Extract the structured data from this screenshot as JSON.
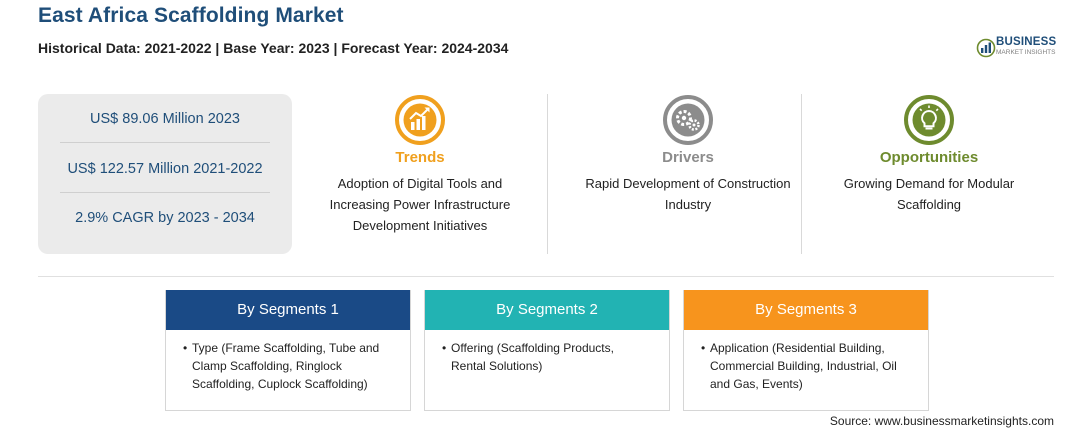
{
  "header": {
    "title": "East Africa Scaffolding Market",
    "subtitle": "Historical Data: 2021-2022 | Base Year: 2023 | Forecast Year: 2024-2034"
  },
  "logo": {
    "name": "BUSINESS",
    "tagline": "MARKET INSIGHTS",
    "icon": "bar-chart-globe-icon"
  },
  "stats": [
    "US$ 89.06 Million 2023",
    "US$ 122.57 Million 2021-2022",
    "2.9% CAGR by 2023 - 2034"
  ],
  "features": {
    "trends": {
      "title": "Trends",
      "text": "Adoption of Digital Tools and Increasing Power Infrastructure Development Initiatives",
      "icon": "rising-chart-icon",
      "color": "#f0a01e"
    },
    "drivers": {
      "title": "Drivers",
      "text": "Rapid Development of Construction Industry",
      "icon": "gears-icon",
      "color": "#8c8c8c"
    },
    "opportunities": {
      "title": "Opportunities",
      "text": "Growing Demand for Modular Scaffolding",
      "icon": "lightbulb-icon",
      "color": "#6e8b2e"
    }
  },
  "segments": [
    {
      "title": "By Segments 1",
      "text": "Type (Frame Scaffolding, Tube and Clamp Scaffolding, Ringlock Scaffolding, Cuplock Scaffolding)",
      "color": "#1a4a86"
    },
    {
      "title": "By Segments 2",
      "text": "Offering (Scaffolding Products, Rental Solutions)",
      "color": "#22b3b3"
    },
    {
      "title": "By Segments 3",
      "text": "Application (Residential Building, Commercial Building, Industrial, Oil and Gas, Events)",
      "color": "#f7941d"
    }
  ],
  "source": "Source: www.businessmarketinsights.com"
}
